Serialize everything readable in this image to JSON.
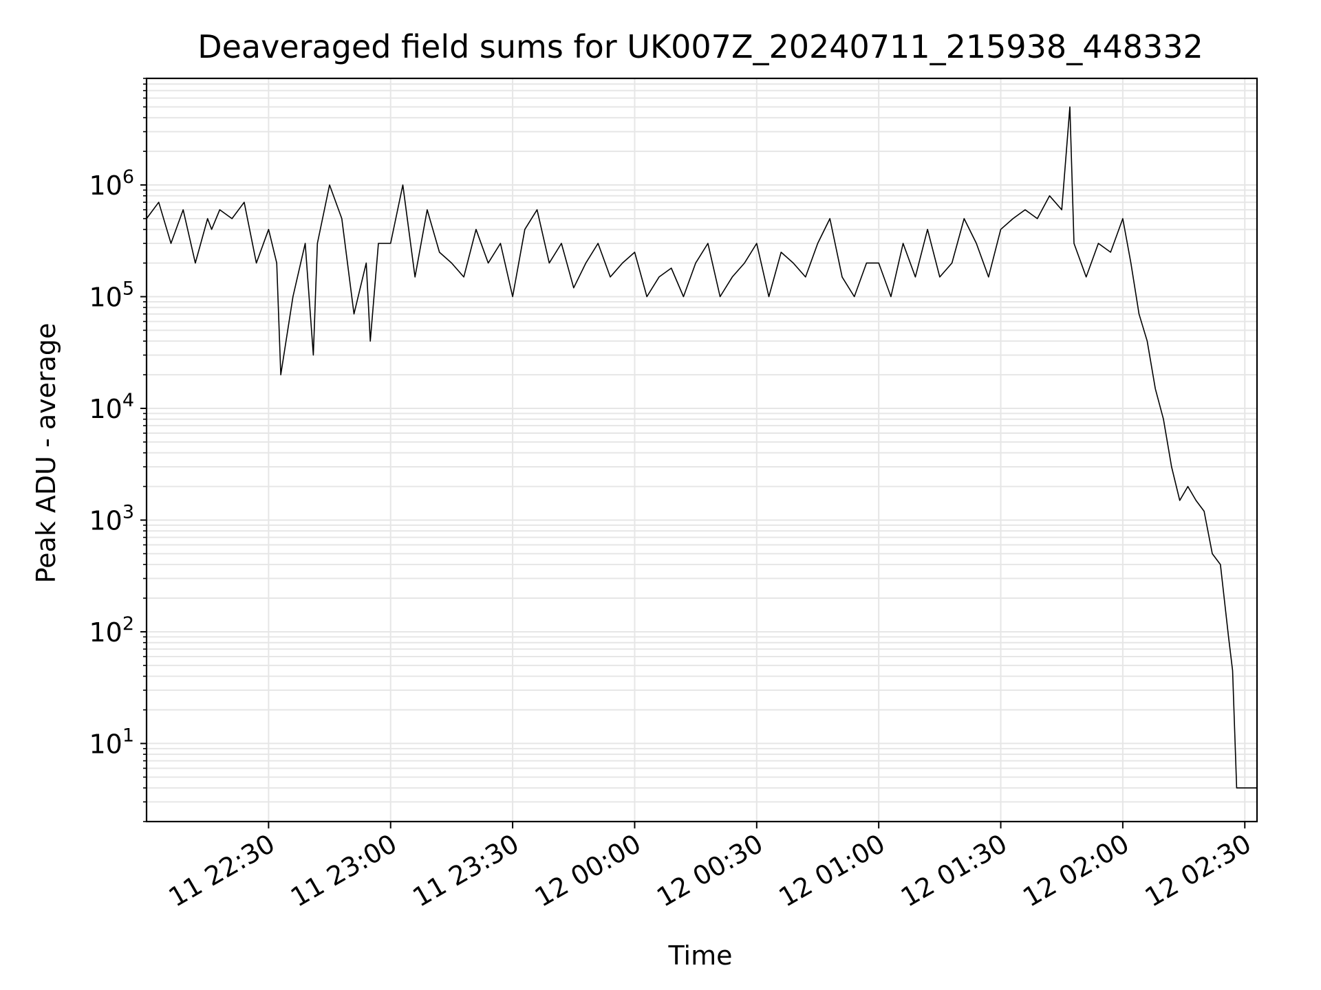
{
  "chart_data": {
    "type": "line",
    "title": "Deaveraged field sums for UK007Z_20240711_215938_448332",
    "xlabel": "Time",
    "ylabel": "Peak ADU - average",
    "yscale": "log",
    "ylim": [
      2,
      9000000
    ],
    "xlim": [
      "11 22:00",
      "12 02:33"
    ],
    "grid": true,
    "line_color": "#000000",
    "grid_color": "#e6e6e6",
    "xticks": [
      "11 22:30",
      "11 23:00",
      "11 23:30",
      "12 00:00",
      "12 00:30",
      "12 01:00",
      "12 01:30",
      "12 02:00",
      "12 02:30"
    ],
    "yticks": [
      {
        "value": 10,
        "base": "10",
        "exp": "1"
      },
      {
        "value": 100,
        "base": "10",
        "exp": "2"
      },
      {
        "value": 1000,
        "base": "10",
        "exp": "3"
      },
      {
        "value": 10000,
        "base": "10",
        "exp": "4"
      },
      {
        "value": 100000,
        "base": "10",
        "exp": "5"
      },
      {
        "value": 1000000,
        "base": "10",
        "exp": "6"
      }
    ],
    "series": [
      {
        "x": [
          "11 22:00",
          "11 22:03",
          "11 22:06",
          "11 22:09",
          "11 22:12",
          "11 22:15",
          "11 22:16",
          "11 22:18",
          "11 22:21",
          "11 22:24",
          "11 22:27",
          "11 22:30",
          "11 22:32",
          "11 22:33",
          "11 22:36",
          "11 22:39",
          "11 22:41",
          "11 22:42",
          "11 22:45",
          "11 22:48",
          "11 22:51",
          "11 22:54",
          "11 22:55",
          "11 22:57",
          "11 23:00",
          "11 23:03",
          "11 23:06",
          "11 23:09",
          "11 23:12",
          "11 23:15",
          "11 23:18",
          "11 23:21",
          "11 23:24",
          "11 23:27",
          "11 23:30",
          "11 23:33",
          "11 23:36",
          "11 23:39",
          "11 23:42",
          "11 23:45",
          "11 23:48",
          "11 23:51",
          "11 23:54",
          "11 23:57",
          "12 00:00",
          "12 00:03",
          "12 00:06",
          "12 00:09",
          "12 00:12",
          "12 00:15",
          "12 00:18",
          "12 00:21",
          "12 00:24",
          "12 00:27",
          "12 00:30",
          "12 00:33",
          "12 00:36",
          "12 00:39",
          "12 00:42",
          "12 00:45",
          "12 00:48",
          "12 00:51",
          "12 00:54",
          "12 00:57",
          "12 01:00",
          "12 01:03",
          "12 01:06",
          "12 01:09",
          "12 01:12",
          "12 01:15",
          "12 01:18",
          "12 01:21",
          "12 01:24",
          "12 01:27",
          "12 01:30",
          "12 01:33",
          "12 01:36",
          "12 01:39",
          "12 01:42",
          "12 01:45",
          "12 01:47",
          "12 01:48",
          "12 01:51",
          "12 01:54",
          "12 01:57",
          "12 02:00",
          "12 02:02",
          "12 02:04",
          "12 02:06",
          "12 02:08",
          "12 02:10",
          "12 02:12",
          "12 02:14",
          "12 02:16",
          "12 02:18",
          "12 02:20",
          "12 02:22",
          "12 02:24",
          "12 02:26",
          "12 02:27",
          "12 02:28",
          "12 02:29",
          "12 02:30",
          "12 02:31",
          "12 02:32",
          "12 02:33"
        ],
        "y": [
          500000,
          700000,
          300000,
          600000,
          200000,
          500000,
          400000,
          600000,
          500000,
          700000,
          200000,
          400000,
          200000,
          20000,
          100000,
          300000,
          30000,
          300000,
          1000000,
          500000,
          70000,
          200000,
          40000,
          300000,
          300000,
          1000000,
          150000,
          600000,
          250000,
          200000,
          150000,
          400000,
          200000,
          300000,
          100000,
          400000,
          600000,
          200000,
          300000,
          120000,
          200000,
          300000,
          150000,
          200000,
          250000,
          100000,
          150000,
          180000,
          100000,
          200000,
          300000,
          100000,
          150000,
          200000,
          300000,
          100000,
          250000,
          200000,
          150000,
          300000,
          500000,
          150000,
          100000,
          200000,
          200000,
          100000,
          300000,
          150000,
          400000,
          150000,
          200000,
          500000,
          300000,
          150000,
          400000,
          500000,
          600000,
          500000,
          800000,
          600000,
          5000000,
          300000,
          150000,
          300000,
          250000,
          500000,
          200000,
          70000,
          40000,
          15000,
          8000,
          3000,
          1500,
          2000,
          1500,
          1200,
          500,
          400,
          90,
          45,
          4,
          4,
          4,
          4,
          4,
          4
        ]
      }
    ]
  }
}
